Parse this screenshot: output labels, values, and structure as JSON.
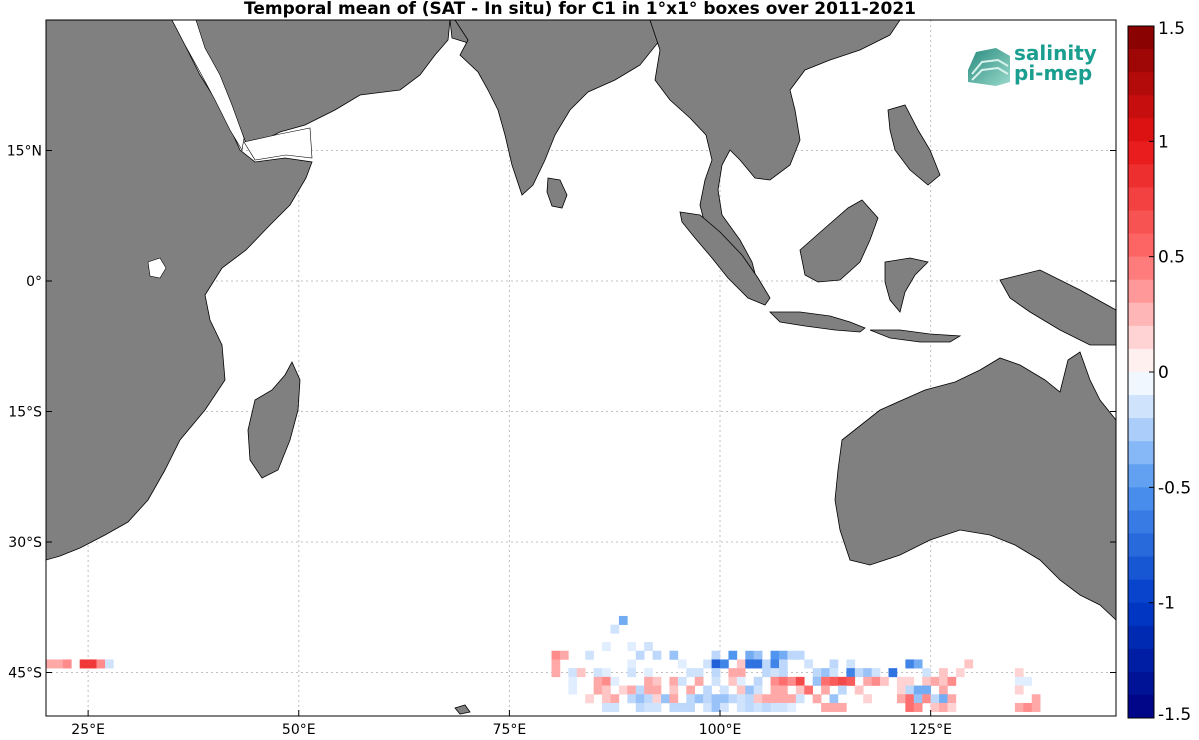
{
  "title": "Temporal mean of (SAT - In situ) for C1 in 1°x1° boxes over 2011-2021",
  "logo": {
    "line1": "salinity",
    "line2": "pi-mep"
  },
  "colors": {
    "land": "#808080",
    "ocean": "#ffffff",
    "grid": "#bfbfbf",
    "brand": "#1a9e8f"
  },
  "chart_data": {
    "type": "heatmap",
    "title": "Temporal mean of (SAT - In situ) for C1 in 1°x1° boxes over 2011-2021",
    "lon_range": [
      20,
      147
    ],
    "lat_range": [
      -50,
      30
    ],
    "x_ticks": [
      {
        "lon": 25,
        "label": "25°E"
      },
      {
        "lon": 50,
        "label": "50°E"
      },
      {
        "lon": 75,
        "label": "75°E"
      },
      {
        "lon": 100,
        "label": "100°E"
      },
      {
        "lon": 125,
        "label": "125°E"
      }
    ],
    "y_ticks": [
      {
        "lat": 15,
        "label": "15°N"
      },
      {
        "lat": 0,
        "label": "0°"
      },
      {
        "lat": -15,
        "label": "15°S"
      },
      {
        "lat": -30,
        "label": "30°S"
      },
      {
        "lat": -45,
        "label": "45°S"
      }
    ],
    "colorbar": {
      "range": [
        -1.5,
        1.5
      ],
      "tick_values": [
        1.5,
        1,
        0.5,
        0,
        -0.5,
        -1,
        -1.5
      ],
      "tick_labels": [
        "1.5",
        "1",
        "0.5",
        "0",
        "-0.5",
        "-1",
        "-1.5"
      ]
    },
    "cells": [
      [
        20.5,
        -44,
        0.3
      ],
      [
        21.5,
        -44,
        0.3
      ],
      [
        22.5,
        -44,
        0.4
      ],
      [
        24.5,
        -44,
        0.8
      ],
      [
        25.5,
        -44,
        0.8
      ],
      [
        26.5,
        -44,
        0.4
      ],
      [
        27.5,
        -44,
        -0.15
      ],
      [
        88.5,
        -39,
        -0.4
      ],
      [
        87.5,
        -40,
        -0.15
      ],
      [
        86.5,
        -42,
        -0.1
      ],
      [
        89.5,
        -42,
        -0.1
      ],
      [
        91.5,
        -42,
        -0.15
      ],
      [
        80.5,
        -43,
        0.4
      ],
      [
        81.5,
        -43,
        0.3
      ],
      [
        84.5,
        -43,
        -0.15
      ],
      [
        90.5,
        -43,
        -0.2
      ],
      [
        92.5,
        -43,
        -0.2
      ],
      [
        94.5,
        -43,
        -0.3
      ],
      [
        99.5,
        -43,
        -0.2
      ],
      [
        101.5,
        -43,
        -0.5
      ],
      [
        103.5,
        -43,
        -0.4
      ],
      [
        104.5,
        -43,
        -0.3
      ],
      [
        106.5,
        -43,
        -0.5
      ],
      [
        107.5,
        -43,
        -0.4
      ],
      [
        108.5,
        -43,
        -0.2
      ],
      [
        109.5,
        -43,
        -0.2
      ],
      [
        80.5,
        -44,
        0.3
      ],
      [
        89.5,
        -44,
        -0.1
      ],
      [
        95.5,
        -44,
        -0.1
      ],
      [
        98.5,
        -44,
        -0.15
      ],
      [
        99.5,
        -44,
        -0.8
      ],
      [
        100.5,
        -44,
        -0.6
      ],
      [
        102.5,
        -44,
        0.2
      ],
      [
        103.5,
        -44,
        -0.7
      ],
      [
        104.5,
        -44,
        -0.7
      ],
      [
        105.5,
        -44,
        -0.2
      ],
      [
        106.5,
        -44,
        -0.6
      ],
      [
        107.5,
        -44,
        -0.2
      ],
      [
        110.5,
        -44,
        -0.15
      ],
      [
        113.5,
        -44,
        -0.2
      ],
      [
        115.5,
        -44,
        -0.15
      ],
      [
        122.5,
        -44,
        -0.6
      ],
      [
        123.5,
        -44,
        -0.4
      ],
      [
        129.5,
        -44,
        0.2
      ],
      [
        80.5,
        -45,
        0.3
      ],
      [
        82.5,
        -45,
        -0.15
      ],
      [
        83.5,
        -45,
        0.2
      ],
      [
        85.5,
        -45,
        -0.15
      ],
      [
        86.5,
        -45,
        -0.1
      ],
      [
        89.5,
        -45,
        -0.15
      ],
      [
        91.5,
        -45,
        -0.1
      ],
      [
        96.5,
        -45,
        -0.15
      ],
      [
        97.5,
        -45,
        -0.15
      ],
      [
        99.5,
        -45,
        -0.2
      ],
      [
        101.5,
        -45,
        0.3
      ],
      [
        102.5,
        -45,
        0.3
      ],
      [
        105.5,
        -45,
        -0.2
      ],
      [
        106.5,
        -45,
        -0.15
      ],
      [
        107.5,
        -45,
        -0.2
      ],
      [
        111.5,
        -45,
        -0.2
      ],
      [
        112.5,
        -45,
        -0.3
      ],
      [
        113.5,
        -45,
        -0.15
      ],
      [
        115.5,
        -45,
        -0.6
      ],
      [
        116.5,
        -45,
        -0.2
      ],
      [
        117.5,
        -45,
        -0.3
      ],
      [
        118.5,
        -45,
        -0.15
      ],
      [
        120.5,
        -45,
        -0.7
      ],
      [
        124.5,
        -45,
        -0.15
      ],
      [
        126.5,
        -45,
        0.2
      ],
      [
        128.5,
        -45,
        0.15
      ],
      [
        135.5,
        -45,
        0.15
      ],
      [
        82.5,
        -46,
        -0.1
      ],
      [
        85.5,
        -46,
        0.3
      ],
      [
        86.5,
        -46,
        0.4
      ],
      [
        87.5,
        -46,
        -0.1
      ],
      [
        91.5,
        -46,
        0.3
      ],
      [
        92.5,
        -46,
        0.2
      ],
      [
        94.5,
        -46,
        0.3
      ],
      [
        95.5,
        -46,
        -0.15
      ],
      [
        97.5,
        -46,
        0.3
      ],
      [
        99.5,
        -46,
        -0.15
      ],
      [
        101.5,
        -46,
        0.2
      ],
      [
        102.5,
        -46,
        -0.1
      ],
      [
        104.5,
        -46,
        -0.2
      ],
      [
        106.5,
        -46,
        0.4
      ],
      [
        107.5,
        -46,
        0.5
      ],
      [
        108.5,
        -46,
        0.4
      ],
      [
        109.5,
        -46,
        0.7
      ],
      [
        111.5,
        -46,
        -0.3
      ],
      [
        112.5,
        -46,
        0.5
      ],
      [
        113.5,
        -46,
        0.6
      ],
      [
        114.5,
        -46,
        0.7
      ],
      [
        115.5,
        -46,
        0.6
      ],
      [
        117.5,
        -46,
        0.3
      ],
      [
        118.5,
        -46,
        0.4
      ],
      [
        119.5,
        -46,
        0.2
      ],
      [
        121.5,
        -46,
        0.15
      ],
      [
        122.5,
        -46,
        0.15
      ],
      [
        124.5,
        -46,
        0.2
      ],
      [
        125.5,
        -46,
        0.3
      ],
      [
        126.5,
        -46,
        0.2
      ],
      [
        127.5,
        -46,
        0.4
      ],
      [
        135.5,
        -46,
        -0.1
      ],
      [
        136.5,
        -46,
        -0.1
      ],
      [
        82.5,
        -47,
        -0.1
      ],
      [
        85.5,
        -47,
        0.3
      ],
      [
        86.5,
        -47,
        0.2
      ],
      [
        88.5,
        -47,
        0.15
      ],
      [
        89.5,
        -47,
        0.3
      ],
      [
        90.5,
        -47,
        -0.2
      ],
      [
        91.5,
        -47,
        0.3
      ],
      [
        92.5,
        -47,
        0.3
      ],
      [
        94.5,
        -47,
        0.2
      ],
      [
        96.5,
        -47,
        0.3
      ],
      [
        98.5,
        -47,
        -0.2
      ],
      [
        100.5,
        -47,
        -0.15
      ],
      [
        102.5,
        -47,
        0.2
      ],
      [
        103.5,
        -47,
        -0.3
      ],
      [
        104.5,
        -47,
        -0.15
      ],
      [
        106.5,
        -47,
        0.3
      ],
      [
        107.5,
        -47,
        0.3
      ],
      [
        109.5,
        -47,
        0.2
      ],
      [
        110.5,
        -47,
        0.5
      ],
      [
        112.5,
        -47,
        0.3
      ],
      [
        114.5,
        -47,
        -0.2
      ],
      [
        116.5,
        -47,
        0.2
      ],
      [
        121.5,
        -47,
        0.15
      ],
      [
        122.5,
        -47,
        -0.2
      ],
      [
        123.5,
        -47,
        -0.4
      ],
      [
        124.5,
        -47,
        -0.4
      ],
      [
        126.5,
        -47,
        0.3
      ],
      [
        135.5,
        -47,
        0.15
      ],
      [
        84.5,
        -48,
        0.15
      ],
      [
        86.5,
        -48,
        0.2
      ],
      [
        87.5,
        -48,
        0.3
      ],
      [
        89.5,
        -48,
        -0.2
      ],
      [
        90.5,
        -48,
        -0.3
      ],
      [
        91.5,
        -48,
        -0.2
      ],
      [
        92.5,
        -48,
        0.15
      ],
      [
        93.5,
        -48,
        -0.3
      ],
      [
        94.5,
        -48,
        0.3
      ],
      [
        96.5,
        -48,
        -0.2
      ],
      [
        97.5,
        -48,
        -0.3
      ],
      [
        98.5,
        -48,
        -0.2
      ],
      [
        99.5,
        -48,
        -0.3
      ],
      [
        100.5,
        -48,
        -0.3
      ],
      [
        101.5,
        -48,
        -0.2
      ],
      [
        102.5,
        -48,
        -0.15
      ],
      [
        103.5,
        -48,
        -0.2
      ],
      [
        104.5,
        -48,
        0.2
      ],
      [
        105.5,
        -48,
        0.3
      ],
      [
        106.5,
        -48,
        0.3
      ],
      [
        107.5,
        -48,
        0.3
      ],
      [
        108.5,
        -48,
        0.3
      ],
      [
        109.5,
        -48,
        -0.15
      ],
      [
        111.5,
        -48,
        0.3
      ],
      [
        113.5,
        -48,
        -0.3
      ],
      [
        117.5,
        -48,
        0.15
      ],
      [
        121.5,
        -48,
        0.3
      ],
      [
        122.5,
        -48,
        0.5
      ],
      [
        123.5,
        -48,
        -0.3
      ],
      [
        124.5,
        -48,
        0.4
      ],
      [
        125.5,
        -48,
        -0.2
      ],
      [
        126.5,
        -48,
        -0.4
      ],
      [
        127.5,
        -48,
        0.3
      ],
      [
        137.5,
        -48,
        0.3
      ],
      [
        86.5,
        -49,
        -0.15
      ],
      [
        87.5,
        -49,
        -0.15
      ],
      [
        90.5,
        -49,
        -0.2
      ],
      [
        91.5,
        -49,
        -0.15
      ],
      [
        92.5,
        -49,
        -0.15
      ],
      [
        94.5,
        -49,
        -0.2
      ],
      [
        95.5,
        -49,
        -0.2
      ],
      [
        96.5,
        -49,
        -0.2
      ],
      [
        98.5,
        -49,
        -0.15
      ],
      [
        99.5,
        -49,
        -0.3
      ],
      [
        100.5,
        -49,
        -0.15
      ],
      [
        102.5,
        -49,
        -0.15
      ],
      [
        103.5,
        -49,
        -0.2
      ],
      [
        104.5,
        -49,
        -0.15
      ],
      [
        105.5,
        -49,
        -0.2
      ],
      [
        106.5,
        -49,
        -0.15
      ],
      [
        107.5,
        -49,
        -0.15
      ],
      [
        108.5,
        -49,
        -0.1
      ],
      [
        112.5,
        -49,
        0.3
      ],
      [
        113.5,
        -49,
        0.3
      ],
      [
        114.5,
        -49,
        0.3
      ],
      [
        122.5,
        -49,
        0.5
      ],
      [
        123.5,
        -49,
        0.4
      ],
      [
        125.5,
        -49,
        0.2
      ],
      [
        126.5,
        -49,
        0.3
      ],
      [
        127.5,
        -49,
        0.15
      ],
      [
        135.5,
        -49,
        0.3
      ],
      [
        136.5,
        -49,
        0.4
      ],
      [
        137.5,
        -49,
        0.3
      ]
    ]
  }
}
